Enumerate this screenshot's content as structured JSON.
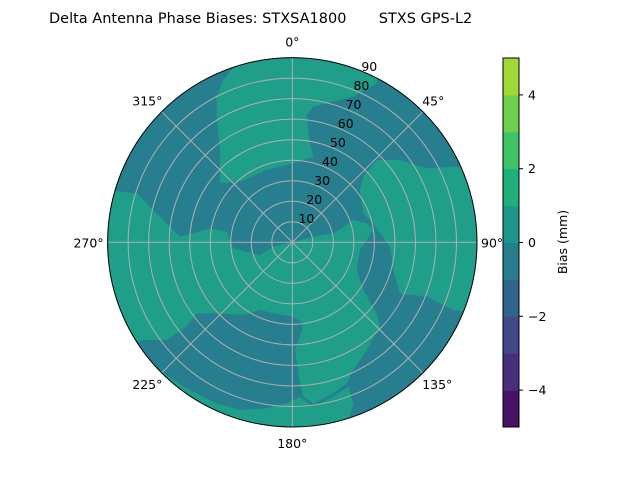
{
  "chart_data": {
    "type": "polar contour",
    "title": "Delta Antenna Phase Biases: STXSA1800       STXS GPS-L2",
    "theta_direction": "clockwise",
    "theta_zero": "north",
    "theta_ticks": [
      0,
      45,
      90,
      135,
      180,
      225,
      270,
      315
    ],
    "theta_tick_labels": [
      "0°",
      "45°",
      "90°",
      "135°",
      "180°",
      "225°",
      "270°",
      "315°"
    ],
    "r_range": [
      0,
      90
    ],
    "r_ticks": [
      10,
      20,
      30,
      40,
      50,
      60,
      70,
      80,
      90
    ],
    "r_tick_labels": [
      "10",
      "20",
      "30",
      "40",
      "50",
      "60",
      "70",
      "80",
      "90"
    ],
    "grid": true,
    "colormap": "viridis",
    "levels": [
      -5,
      -4,
      -3,
      -2,
      -1,
      0,
      1,
      2,
      3,
      4,
      5
    ],
    "level_colors": [
      "#471365",
      "#482f7a",
      "#3e4a89",
      "#31648d",
      "#277e8e",
      "#1f968b",
      "#20ae7b",
      "#3dc264",
      "#6ed14d",
      "#a0da39",
      "#dde318"
    ],
    "bands_present": [
      [
        -1,
        0
      ],
      [
        0,
        1
      ]
    ],
    "colorbar": {
      "label": "Bias (mm)",
      "range": [
        -5,
        5
      ],
      "ticks": [
        -4,
        -2,
        0,
        2,
        4
      ],
      "tick_labels": [
        "−4",
        "−2",
        "0",
        "2",
        "4"
      ]
    }
  }
}
